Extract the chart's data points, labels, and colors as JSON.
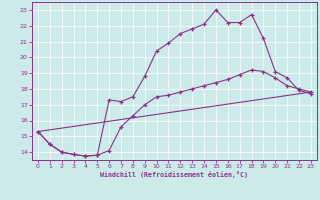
{
  "xlabel": "Windchill (Refroidissement éolien,°C)",
  "xlim": [
    -0.5,
    23.5
  ],
  "ylim": [
    13.5,
    23.5
  ],
  "yticks": [
    14,
    15,
    16,
    17,
    18,
    19,
    20,
    21,
    22,
    23
  ],
  "xticks": [
    0,
    1,
    2,
    3,
    4,
    5,
    6,
    7,
    8,
    9,
    10,
    11,
    12,
    13,
    14,
    15,
    16,
    17,
    18,
    19,
    20,
    21,
    22,
    23
  ],
  "bg_color": "#cdeaea",
  "line_color": "#883388",
  "line1_x": [
    0,
    1,
    2,
    3,
    4,
    5,
    6,
    7,
    8,
    9,
    10,
    11,
    12,
    13,
    14,
    15,
    16,
    17,
    18,
    19,
    20,
    21,
    22,
    23
  ],
  "line1_y": [
    15.3,
    14.5,
    14.0,
    13.85,
    13.75,
    13.8,
    17.3,
    17.2,
    17.5,
    18.8,
    20.4,
    20.9,
    21.5,
    21.8,
    22.1,
    23.0,
    22.2,
    22.2,
    22.7,
    21.2,
    19.1,
    18.7,
    17.9,
    17.7
  ],
  "line2_x": [
    0,
    1,
    2,
    3,
    4,
    5,
    6,
    7,
    8,
    9,
    10,
    11,
    12,
    13,
    14,
    15,
    16,
    17,
    18,
    19,
    20,
    21,
    22,
    23
  ],
  "line2_y": [
    15.3,
    14.5,
    14.0,
    13.85,
    13.75,
    13.8,
    14.1,
    15.6,
    16.3,
    17.0,
    17.5,
    17.6,
    17.8,
    18.0,
    18.2,
    18.4,
    18.6,
    18.9,
    19.2,
    19.1,
    18.7,
    18.2,
    18.0,
    17.8
  ],
  "line3_x": [
    0,
    23
  ],
  "line3_y": [
    15.3,
    17.8
  ]
}
